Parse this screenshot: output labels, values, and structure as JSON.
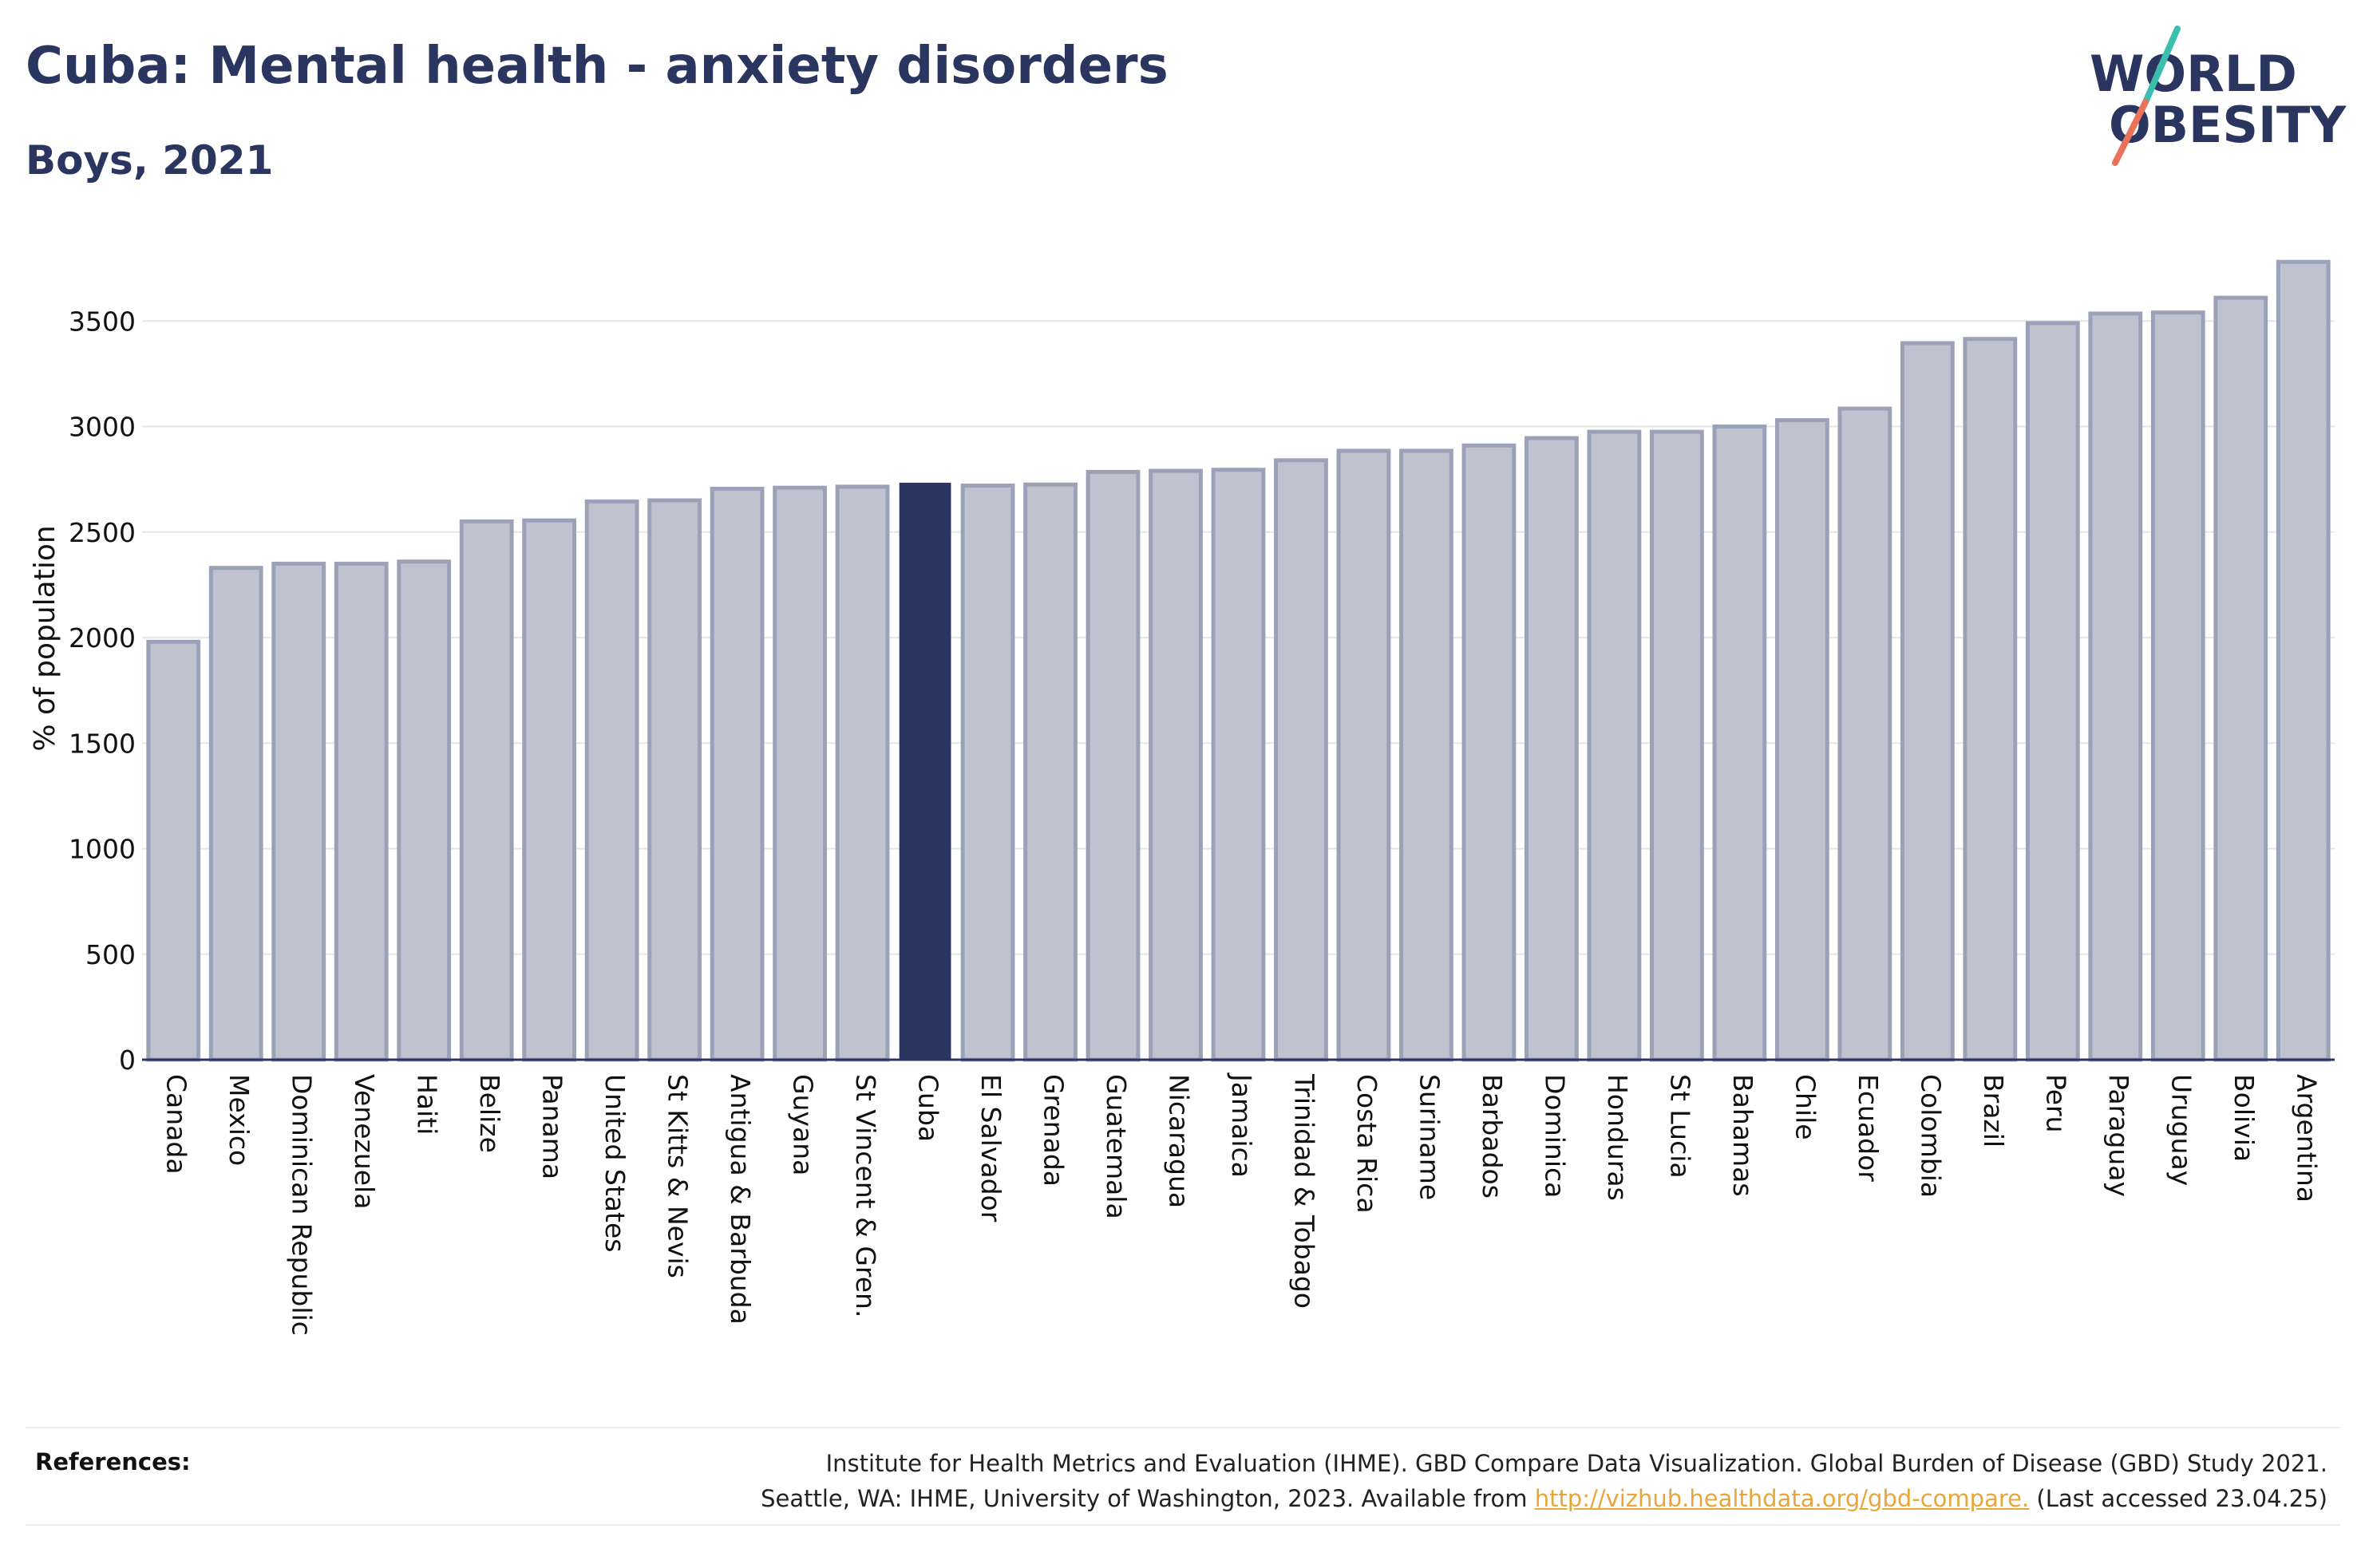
{
  "header": {
    "title": "Cuba: Mental health - anxiety disorders",
    "subtitle": "Boys, 2021"
  },
  "logo": {
    "line1": "WORLD",
    "line2": "OBESITY",
    "colors": {
      "text": "#2a3560",
      "slash_top": "#3bbfad",
      "slash_bottom": "#e8735a"
    }
  },
  "chart_data": {
    "type": "bar",
    "ylabel": "% of population",
    "xlabel": "",
    "ylim": [
      0,
      3800
    ],
    "yticks": [
      0,
      500,
      1000,
      1500,
      2000,
      2500,
      3000,
      3500
    ],
    "grid": true,
    "highlight": "Cuba",
    "colors": {
      "bar": "#bfc3d0",
      "bar_edge": "#9ba2b8",
      "highlight": "#2a3560",
      "grid": "#e6e6e6",
      "axis": "#2a3560"
    },
    "categories": [
      "Canada",
      "Mexico",
      "Dominican Republic",
      "Venezuela",
      "Haiti",
      "Belize",
      "Panama",
      "United States",
      "St Kitts & Nevis",
      "Antigua & Barbuda",
      "Guyana",
      "St Vincent & Gren.",
      "Cuba",
      "El Salvador",
      "Grenada",
      "Guatemala",
      "Nicaragua",
      "Jamaica",
      "Trinidad & Tobago",
      "Costa Rica",
      "Suriname",
      "Barbados",
      "Dominica",
      "Honduras",
      "St Lucia",
      "Bahamas",
      "Chile",
      "Ecuador",
      "Colombia",
      "Brazil",
      "Peru",
      "Paraguay",
      "Uruguay",
      "Bolivia",
      "Argentina"
    ],
    "values": [
      1980,
      2330,
      2350,
      2350,
      2360,
      2550,
      2555,
      2645,
      2650,
      2705,
      2710,
      2715,
      2730,
      2720,
      2725,
      2785,
      2790,
      2795,
      2840,
      2885,
      2885,
      2910,
      2945,
      2975,
      2975,
      3000,
      3030,
      3085,
      3395,
      3415,
      3490,
      3535,
      3540,
      3610,
      3780
    ]
  },
  "references": {
    "label": "References:",
    "line1": "Institute for Health Metrics and Evaluation (IHME). GBD Compare Data Visualization. Global Burden of Disease (GBD) Study 2021.",
    "line2_before": "Seattle, WA: IHME, University of Washington, 2023. Available from ",
    "link": "http://vizhub.healthdata.org/gbd-compare.",
    "line2_after": " (Last accessed 23.04.25)"
  }
}
